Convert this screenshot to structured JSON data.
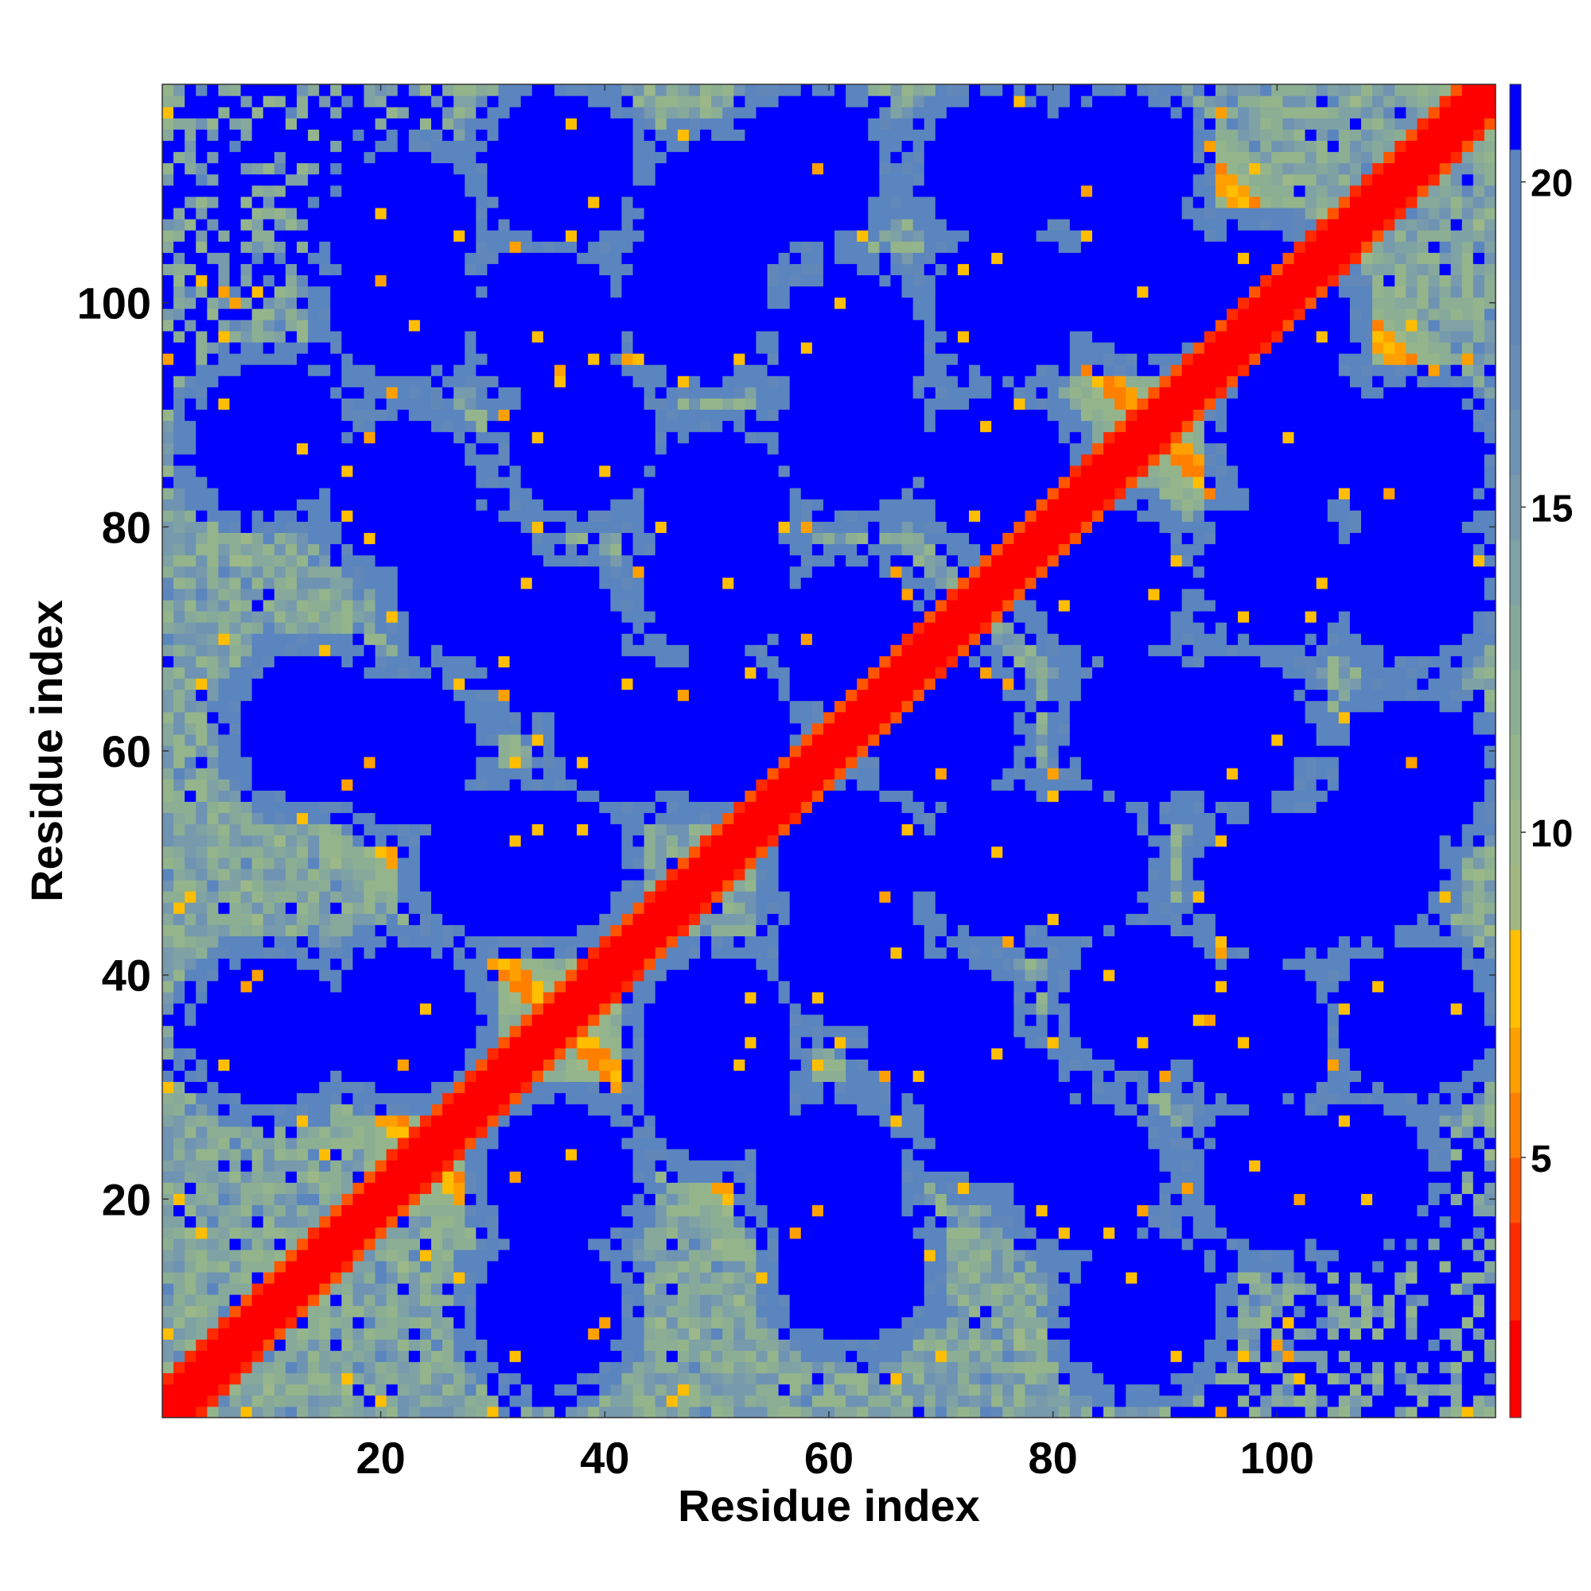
{
  "chart_data": {
    "type": "heatmap",
    "title": "",
    "xlabel": "Residue index",
    "ylabel": "Residue index",
    "x_range": [
      1,
      119
    ],
    "y_range": [
      1,
      119
    ],
    "n_residues": 119,
    "x_ticks": [
      20,
      40,
      60,
      80,
      100
    ],
    "y_ticks": [
      20,
      40,
      60,
      80,
      100
    ],
    "colorbar": {
      "range": [
        1,
        21.5
      ],
      "ticks": [
        5,
        10,
        15,
        20
      ],
      "levels": [
        {
          "max": 2.5,
          "color": "#ff0000"
        },
        {
          "max": 4.0,
          "color": "#ff2a00"
        },
        {
          "max": 5.0,
          "color": "#ff5500"
        },
        {
          "max": 6.0,
          "color": "#ff8000"
        },
        {
          "max": 7.0,
          "color": "#ffa000"
        },
        {
          "max": 8.5,
          "color": "#ffbf00"
        },
        {
          "max": 9.5,
          "color": "#a3b880"
        },
        {
          "max": 10.5,
          "color": "#9db888"
        },
        {
          "max": 11.5,
          "color": "#94b58c"
        },
        {
          "max": 12.5,
          "color": "#8caf94"
        },
        {
          "max": 13.5,
          "color": "#86a99c"
        },
        {
          "max": 14.5,
          "color": "#7fa2a4"
        },
        {
          "max": 15.5,
          "color": "#779aac"
        },
        {
          "max": 16.5,
          "color": "#6f93b2"
        },
        {
          "max": 17.5,
          "color": "#688cb6"
        },
        {
          "max": 18.5,
          "color": "#6288ba"
        },
        {
          "max": 20.5,
          "color": "#5a85be"
        },
        {
          "max": 99,
          "color": "#0000ff"
        }
      ]
    },
    "structure": {
      "main_diagonal": "i = j, values below 2.5",
      "antiparallel_contacts": [
        {
          "sum": 48,
          "from": 8,
          "to": 24
        },
        {
          "sum": 72,
          "from": 8,
          "to": 36
        },
        {
          "sum": 82,
          "from": 22,
          "to": 48
        },
        {
          "sum": 106,
          "from": 18,
          "to": 56
        },
        {
          "sum": 112,
          "from": 37,
          "to": 56
        },
        {
          "sum": 130,
          "from": 36,
          "to": 57
        },
        {
          "sum": 154,
          "from": 56,
          "to": 76
        },
        {
          "sum": 178,
          "from": 72,
          "to": 96
        },
        {
          "sum": 187,
          "from": 76,
          "to": 100
        },
        {
          "sum": 188,
          "from": 92,
          "to": 96
        },
        {
          "sum": 206,
          "from": 95,
          "to": 113
        }
      ],
      "contact_free_cluster_centers": [
        [
          22,
          36
        ],
        [
          22,
          60
        ],
        [
          22,
          83
        ],
        [
          22,
          107
        ],
        [
          35,
          10
        ],
        [
          35,
          50
        ],
        [
          35,
          70
        ],
        [
          35,
          98
        ],
        [
          50,
          30
        ],
        [
          50,
          62
        ],
        [
          50,
          82
        ],
        [
          50,
          108
        ],
        [
          62,
          14
        ],
        [
          62,
          42
        ],
        [
          62,
          70
        ],
        [
          62,
          96
        ],
        [
          75,
          28
        ],
        [
          75,
          50
        ],
        [
          75,
          85
        ],
        [
          75,
          112
        ],
        [
          88,
          10
        ],
        [
          88,
          38
        ],
        [
          88,
          62
        ],
        [
          88,
          102
        ],
        [
          100,
          22
        ],
        [
          100,
          48
        ],
        [
          100,
          76
        ],
        [
          100,
          98
        ],
        [
          112,
          36
        ],
        [
          112,
          58
        ],
        [
          112,
          86
        ]
      ]
    }
  }
}
